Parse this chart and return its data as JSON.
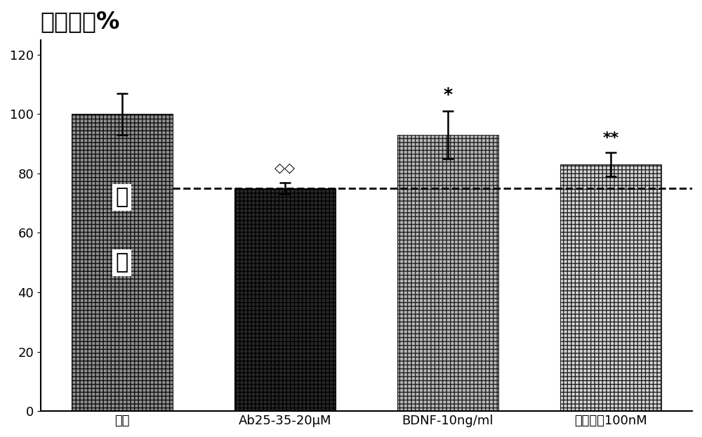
{
  "title": "轴突长度%",
  "categories": [
    "介质",
    "Ab25-35-20μM",
    "BDNF-10ng/ml",
    "苯乙双胍100nM"
  ],
  "values": [
    100,
    75,
    93,
    83
  ],
  "errors": [
    7,
    2,
    8,
    4
  ],
  "dashed_line_y": 75,
  "ylim": [
    0,
    125
  ],
  "yticks": [
    0,
    20,
    40,
    60,
    80,
    100,
    120
  ],
  "label_inside_bar1_line1": "对",
  "label_inside_bar1_line2": "照",
  "annotation_1": "◇◇",
  "annotation_2": "*",
  "annotation_3": "**",
  "background_color": "#ffffff",
  "title_fontsize": 24,
  "tick_fontsize": 13,
  "bar_colors": [
    "#909090",
    "#282828",
    "#b8b8b8",
    "#d4d4d4"
  ],
  "bar_edge_colors": [
    "#111111",
    "#000000",
    "#222222",
    "#222222"
  ],
  "bar_width": 0.62
}
